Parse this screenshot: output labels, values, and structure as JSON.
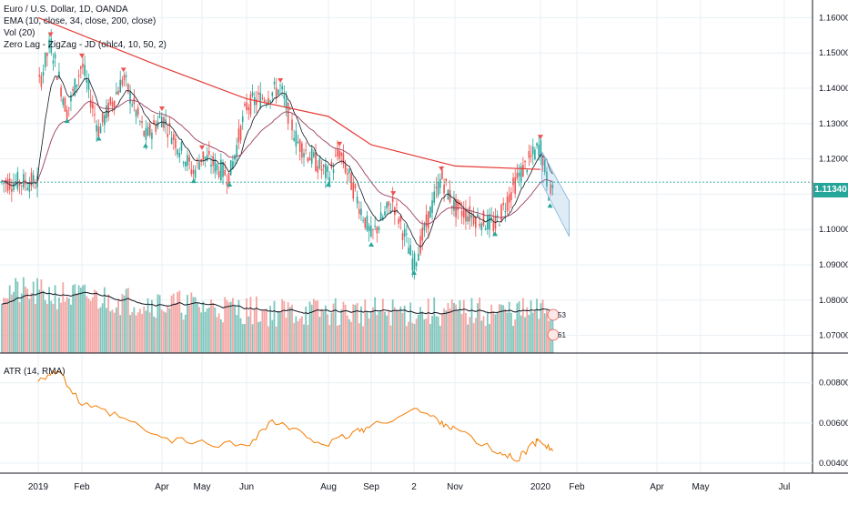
{
  "legend": {
    "line1": "Euro / U.S. Dollar, 1D, OANDA",
    "line2": "EMA (10, close, 34, close, 200, close)",
    "line3": "Vol (20)",
    "line4": "Zero Lag - ZigZag - JD (ohlc4, 10, 50, 2)",
    "atr": "ATR (14, RMA)"
  },
  "last_price_label": "1.11340",
  "volume_badges": [
    "53",
    "61"
  ],
  "colors": {
    "up": "#26a69a",
    "down": "#ef5350",
    "ema_fast": "#131722",
    "ema_mid": "#9c3d5c",
    "ema_slow": "#e53935",
    "atr": "#f57c00",
    "vol_up": "#7fc6bd",
    "vol_down": "#f4a6a4",
    "grid": "#e9f0f4",
    "channel": "#7fb2dd"
  },
  "chart_data": [
    {
      "type": "candlestick",
      "title": "Euro / U.S. Dollar, 1D, OANDA",
      "price_axis": [
        "1.07000",
        "1.08000",
        "1.09000",
        "1.10000",
        "1.11000",
        "1.12000",
        "1.13000",
        "1.14000",
        "1.15000",
        "1.16000"
      ],
      "ylim": [
        1.065,
        1.165
      ],
      "time_axis": [
        "2019",
        "Feb",
        "Apr",
        "May",
        "Jun",
        "Aug",
        "Sep",
        "2",
        "Nov",
        "2020",
        "Feb",
        "Apr",
        "May",
        "Jul"
      ],
      "price_path": [
        [
          "2019",
          1.14
        ],
        [
          "2019-01-10",
          1.153
        ],
        [
          "2019-01-22",
          1.133
        ],
        [
          "Feb",
          1.147
        ],
        [
          "2019-02-14",
          1.128
        ],
        [
          "2019-03-04",
          1.143
        ],
        [
          "2019-03-20",
          1.126
        ],
        [
          "Apr",
          1.132
        ],
        [
          "2019-04-24",
          1.116
        ],
        [
          "May",
          1.121
        ],
        [
          "2019-05-20",
          1.115
        ],
        [
          "Jun",
          1.135
        ],
        [
          "2019-06-26",
          1.14
        ],
        [
          "2019-07-08",
          1.125
        ],
        [
          "Aug",
          1.115
        ],
        [
          "2019-08-08",
          1.122
        ],
        [
          "Sep",
          1.098
        ],
        [
          "2019-09-16",
          1.108
        ],
        [
          "2",
          1.09
        ],
        [
          "2019-10-21",
          1.115
        ],
        [
          "Nov",
          1.106
        ],
        [
          "2019-11-29",
          1.101
        ],
        [
          "2019-12-16",
          1.115
        ],
        [
          "2020",
          1.124
        ],
        [
          "2020-01-08",
          1.109
        ],
        [
          "2020-01-10",
          1.1134
        ]
      ],
      "ema_200": [
        [
          "2019",
          1.16
        ],
        [
          "Apr",
          1.146
        ],
        [
          "Jun",
          1.137
        ],
        [
          "Aug",
          1.132
        ],
        [
          "Sep",
          1.124
        ],
        [
          "Nov",
          1.118
        ],
        [
          "2020",
          1.117
        ]
      ],
      "last_price": 1.1134
    },
    {
      "type": "bar",
      "title": "Vol (20)",
      "note": "volume histogram with 20-period moving average",
      "latest_values": [
        53,
        61
      ]
    },
    {
      "type": "line",
      "title": "ATR (14, RMA)",
      "ylabel_ticks": [
        "0.00400",
        "0.00600",
        "0.00800"
      ],
      "ylim": [
        0.0035,
        0.0093
      ],
      "series": [
        {
          "name": "ATR (14, RMA)",
          "points": [
            [
              "2019",
              0.0082
            ],
            [
              "2019-01-15",
              0.0086
            ],
            [
              "Feb",
              0.0069
            ],
            [
              "2019-03-01",
              0.0063
            ],
            [
              "Apr",
              0.0052
            ],
            [
              "May",
              0.005
            ],
            [
              "Jun",
              0.0049
            ],
            [
              "2019-06-20",
              0.0061
            ],
            [
              "2019-07-10",
              0.0055
            ],
            [
              "Aug",
              0.0049
            ],
            [
              "2019-08-20",
              0.0056
            ],
            [
              "Sep",
              0.0058
            ],
            [
              "2",
              0.0067
            ],
            [
              "2019-10-20",
              0.0061
            ],
            [
              "Nov",
              0.0057
            ],
            [
              "2019-12-01",
              0.0045
            ],
            [
              "2019-12-15",
              0.0042
            ],
            [
              "2019-12-28",
              0.005
            ],
            [
              "2020",
              0.0052
            ],
            [
              "2020-01-10",
              0.0046
            ]
          ]
        }
      ]
    }
  ]
}
